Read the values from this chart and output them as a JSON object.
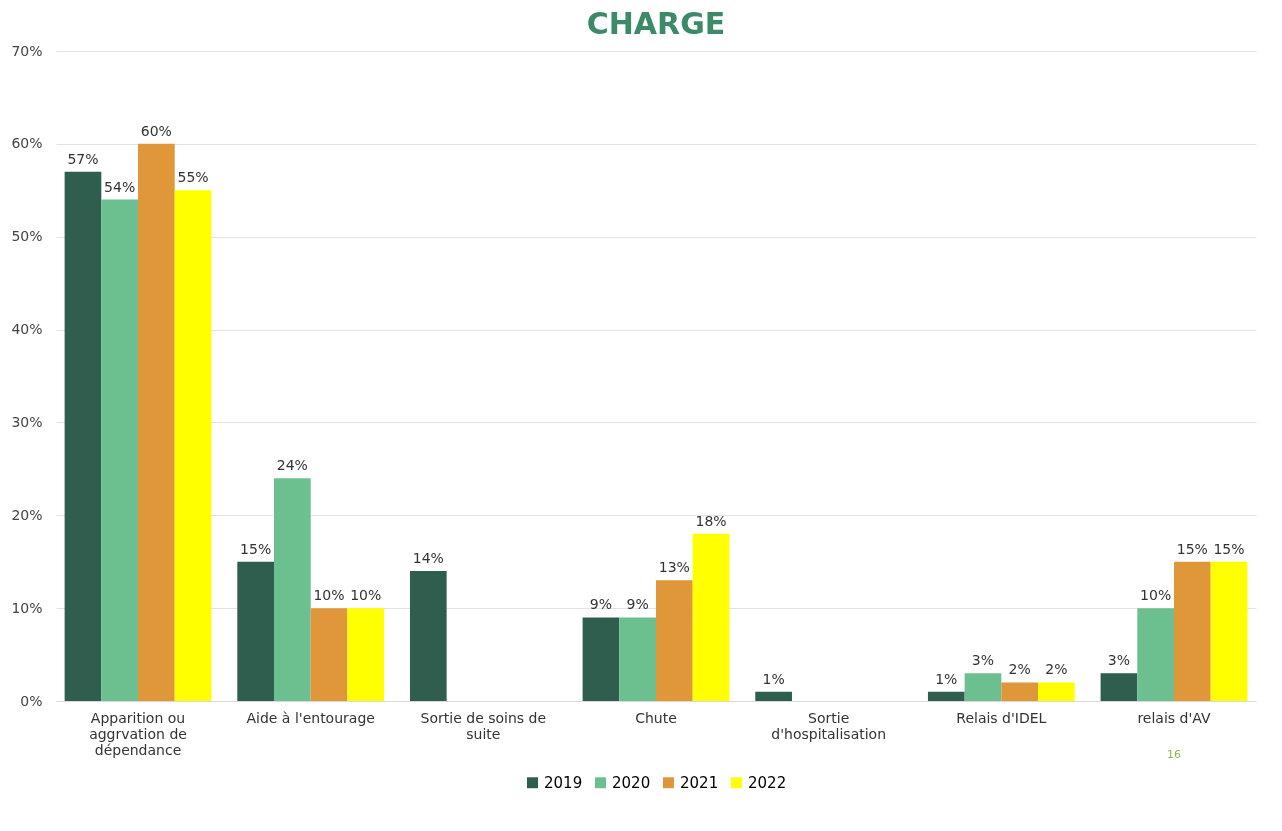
{
  "chart_data": {
    "type": "bar",
    "title": "CHARGE",
    "categories": [
      "Apparition ou aggrvation de dépendance",
      "Aide à l'entourage",
      "Sortie de soins de suite",
      "Chute",
      "Sortie d'hospitalisation",
      "Relais d'IDEL",
      "relais d'AV"
    ],
    "series": [
      {
        "name": "2019",
        "color": "#2f5e4e",
        "values": [
          57,
          15,
          14,
          9,
          1,
          1,
          3
        ],
        "value_labels": [
          "57%",
          "15%",
          "14%",
          "9%",
          "1%",
          "1%",
          "3%"
        ]
      },
      {
        "name": "2020",
        "color": "#6cc08f",
        "values": [
          54,
          24,
          null,
          9,
          null,
          3,
          10
        ],
        "value_labels": [
          "54%",
          "24%",
          null,
          "9%",
          null,
          "3%",
          "10%"
        ]
      },
      {
        "name": "2021",
        "color": "#e0973a",
        "values": [
          60,
          10,
          null,
          13,
          null,
          2,
          15
        ],
        "value_labels": [
          "60%",
          "10%",
          null,
          "13%",
          null,
          "2%",
          "15%"
        ]
      },
      {
        "name": "2022",
        "color": "#ffff00",
        "values": [
          55,
          10,
          null,
          18,
          null,
          2,
          15
        ],
        "value_labels": [
          "55%",
          "10%",
          null,
          "18%",
          null,
          "2%",
          "15%"
        ]
      }
    ],
    "ylim": [
      0,
      70
    ],
    "yticks": [
      {
        "value": 0,
        "label": "0%"
      },
      {
        "value": 10,
        "label": "10%"
      },
      {
        "value": 20,
        "label": "20%"
      },
      {
        "value": 30,
        "label": "30%"
      },
      {
        "value": 40,
        "label": "40%"
      },
      {
        "value": 50,
        "label": "50%"
      },
      {
        "value": 60,
        "label": "60%"
      },
      {
        "value": 70,
        "label": "70%"
      }
    ],
    "grid": "y",
    "legend": "bottom",
    "annotations": [
      "16"
    ]
  }
}
